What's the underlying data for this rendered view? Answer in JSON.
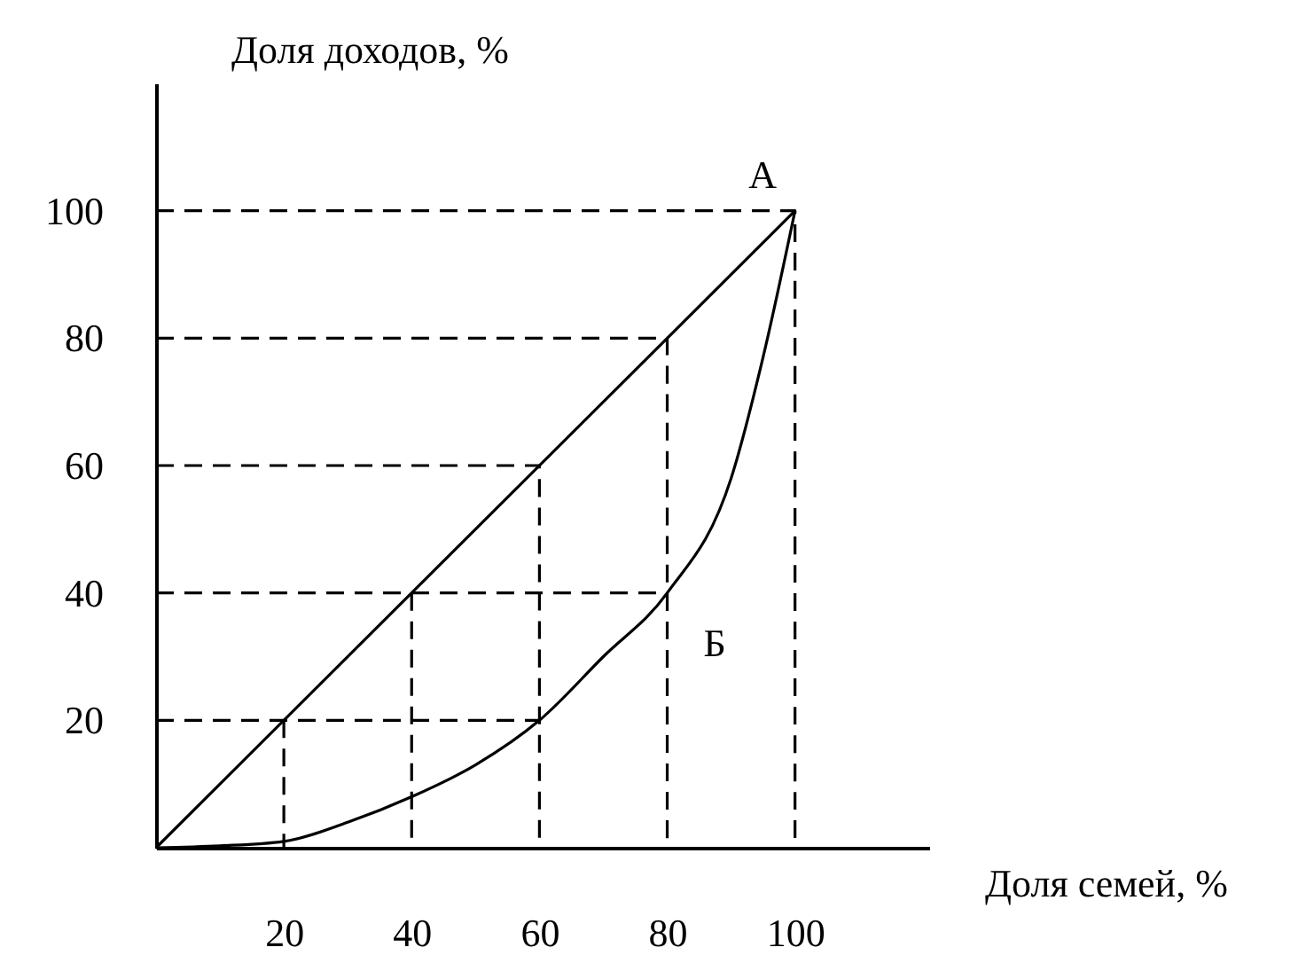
{
  "chart_data": {
    "type": "line",
    "ylabel": "Доля доходов, %",
    "xlabel": "Доля семей, %",
    "xlim": [
      0,
      121
    ],
    "ylim": [
      0,
      120
    ],
    "xticks": [
      20,
      40,
      60,
      80,
      100
    ],
    "yticks": [
      20,
      40,
      60,
      80,
      100
    ],
    "grid": false,
    "marker": "none",
    "series": [
      {
        "color": "#000000",
        "line_style": "solid",
        "x": [
          0,
          100
        ],
        "values": [
          0,
          100
        ]
      },
      {
        "color": "#000000",
        "line_style": "solid",
        "x": [
          0,
          10,
          20,
          30,
          40,
          50,
          60,
          70,
          80,
          90,
          95,
          100
        ],
        "values": [
          0,
          0.3,
          1,
          4,
          8,
          13,
          20,
          30,
          40,
          58,
          77,
          100
        ]
      },
      {
        "color": "#000000",
        "line_style": "dashed",
        "x": [
          0,
          60
        ],
        "values": [
          20,
          20
        ]
      },
      {
        "color": "#000000",
        "line_style": "dashed",
        "x": [
          20,
          20
        ],
        "values": [
          20,
          0
        ]
      },
      {
        "color": "#000000",
        "line_style": "dashed",
        "x": [
          0,
          80
        ],
        "values": [
          40,
          40
        ]
      },
      {
        "color": "#000000",
        "line_style": "dashed",
        "x": [
          40,
          40
        ],
        "values": [
          40,
          0
        ]
      },
      {
        "color": "#000000",
        "line_style": "dashed",
        "x": [
          0,
          60,
          60
        ],
        "values": [
          60,
          60,
          0
        ]
      },
      {
        "color": "#000000",
        "line_style": "dashed",
        "x": [
          0,
          80,
          80
        ],
        "values": [
          80,
          80,
          0
        ]
      },
      {
        "color": "#000000",
        "line_style": "dashed",
        "x": [
          0,
          100,
          100
        ],
        "values": [
          100,
          100,
          0
        ]
      }
    ],
    "annotations": [
      "А",
      "Б"
    ]
  }
}
